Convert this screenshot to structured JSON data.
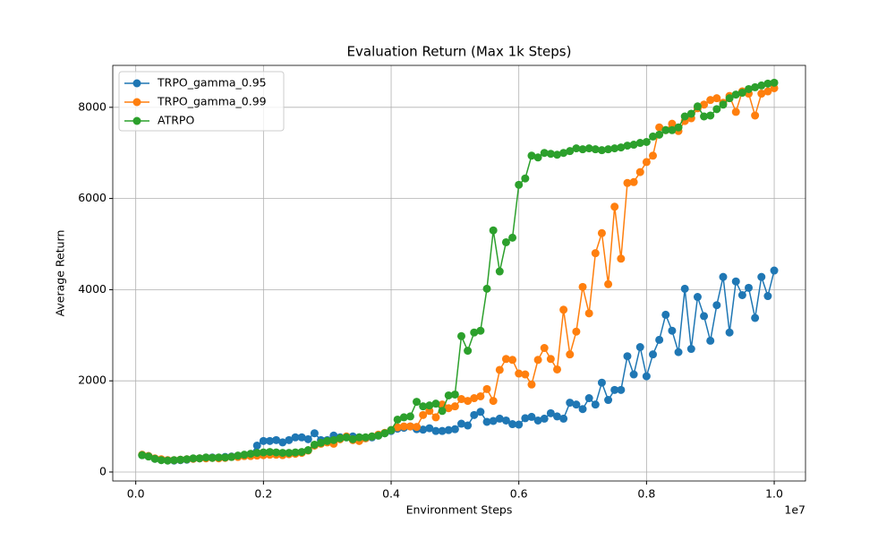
{
  "chart_data": {
    "type": "line",
    "title": "Evaluation Return (Max 1k Steps)",
    "x_label": "Environment Steps",
    "y_label": "Average Return",
    "x_offset_text": "1e7",
    "x": [
      100000,
      200000,
      300000,
      400000,
      500000,
      600000,
      700000,
      800000,
      900000,
      1000000,
      1100000,
      1200000,
      1300000,
      1400000,
      1500000,
      1600000,
      1700000,
      1800000,
      1900000,
      2000000,
      2100000,
      2200000,
      2300000,
      2400000,
      2500000,
      2600000,
      2700000,
      2800000,
      2900000,
      3000000,
      3100000,
      3200000,
      3300000,
      3400000,
      3500000,
      3600000,
      3700000,
      3800000,
      3900000,
      4000000,
      4100000,
      4200000,
      4300000,
      4400000,
      4500000,
      4600000,
      4700000,
      4800000,
      4900000,
      5000000,
      5100000,
      5200000,
      5300000,
      5400000,
      5500000,
      5600000,
      5700000,
      5800000,
      5900000,
      6000000,
      6100000,
      6200000,
      6300000,
      6400000,
      6500000,
      6600000,
      6700000,
      6800000,
      6900000,
      7000000,
      7100000,
      7200000,
      7300000,
      7400000,
      7500000,
      7600000,
      7700000,
      7800000,
      7900000,
      8000000,
      8100000,
      8200000,
      8300000,
      8400000,
      8500000,
      8600000,
      8700000,
      8800000,
      8900000,
      9000000,
      9100000,
      9200000,
      9300000,
      9400000,
      9500000,
      9600000,
      9700000,
      9800000,
      9900000,
      10000000
    ],
    "series": [
      {
        "name": "TRPO_gamma_0.95",
        "color": "#1f77b4",
        "values": [
          370,
          350,
          290,
          270,
          260,
          250,
          260,
          270,
          290,
          300,
          310,
          320,
          310,
          330,
          340,
          350,
          360,
          380,
          580,
          680,
          680,
          700,
          650,
          700,
          760,
          760,
          720,
          850,
          700,
          700,
          800,
          760,
          760,
          780,
          760,
          740,
          760,
          800,
          850,
          900,
          950,
          970,
          1000,
          940,
          930,
          960,
          900,
          900,
          920,
          940,
          1060,
          1020,
          1250,
          1320,
          1100,
          1120,
          1170,
          1130,
          1050,
          1040,
          1180,
          1210,
          1130,
          1170,
          1290,
          1220,
          1170,
          1520,
          1480,
          1380,
          1620,
          1480,
          1960,
          1580,
          1800,
          1800,
          2540,
          2140,
          2740,
          2100,
          2580,
          2900,
          3450,
          3100,
          2630,
          4020,
          2700,
          3840,
          3420,
          2880,
          3660,
          4280,
          3060,
          4180,
          3880,
          4040,
          3380,
          4280,
          3860,
          4420
        ]
      },
      {
        "name": "TRPO_gamma_0.99",
        "color": "#ff7f0e",
        "values": [
          380,
          350,
          300,
          280,
          260,
          260,
          270,
          280,
          290,
          300,
          300,
          310,
          300,
          310,
          330,
          330,
          350,
          350,
          360,
          370,
          380,
          380,
          370,
          390,
          400,
          420,
          470,
          580,
          620,
          650,
          620,
          720,
          780,
          700,
          680,
          740,
          780,
          820,
          860,
          920,
          980,
          1000,
          1000,
          990,
          1250,
          1340,
          1200,
          1480,
          1400,
          1440,
          1600,
          1560,
          1620,
          1660,
          1820,
          1560,
          2240,
          2480,
          2460,
          2160,
          2140,
          1920,
          2460,
          2720,
          2480,
          2250,
          3560,
          2580,
          3080,
          4060,
          3480,
          4800,
          5240,
          4120,
          5820,
          4680,
          6340,
          6360,
          6580,
          6800,
          6940,
          7560,
          7500,
          7640,
          7480,
          7700,
          7760,
          7980,
          8060,
          8160,
          8200,
          8100,
          8250,
          7900,
          8350,
          8300,
          7820,
          8300,
          8350,
          8420
        ]
      },
      {
        "name": "ATRPO",
        "color": "#2ca02c",
        "values": [
          370,
          340,
          290,
          260,
          250,
          260,
          270,
          280,
          300,
          300,
          320,
          310,
          320,
          320,
          330,
          360,
          380,
          400,
          420,
          430,
          440,
          430,
          420,
          420,
          430,
          440,
          480,
          600,
          640,
          680,
          700,
          740,
          760,
          720,
          760,
          760,
          780,
          800,
          850,
          920,
          1150,
          1200,
          1220,
          1540,
          1440,
          1460,
          1500,
          1340,
          1680,
          1700,
          2980,
          2660,
          3060,
          3100,
          4020,
          5300,
          4400,
          5040,
          5140,
          6300,
          6440,
          6940,
          6900,
          7000,
          6980,
          6960,
          7000,
          7040,
          7100,
          7080,
          7100,
          7080,
          7060,
          7080,
          7100,
          7120,
          7160,
          7180,
          7220,
          7240,
          7360,
          7400,
          7500,
          7500,
          7560,
          7800,
          7860,
          8020,
          7800,
          7820,
          7960,
          8060,
          8200,
          8280,
          8320,
          8400,
          8440,
          8480,
          8520,
          8540
        ]
      }
    ],
    "xlim": [
      -360000,
      10490000
    ],
    "xticks": [
      {
        "value": 0,
        "label": "0.0"
      },
      {
        "value": 2000000,
        "label": "0.2"
      },
      {
        "value": 4000000,
        "label": "0.4"
      },
      {
        "value": 6000000,
        "label": "0.6"
      },
      {
        "value": 8000000,
        "label": "0.8"
      },
      {
        "value": 10000000,
        "label": "1.0"
      }
    ],
    "ylim": [
      -197,
      8920
    ],
    "yticks": [
      0,
      2000,
      4000,
      6000,
      8000
    ],
    "grid": true,
    "legend": "upper left"
  }
}
